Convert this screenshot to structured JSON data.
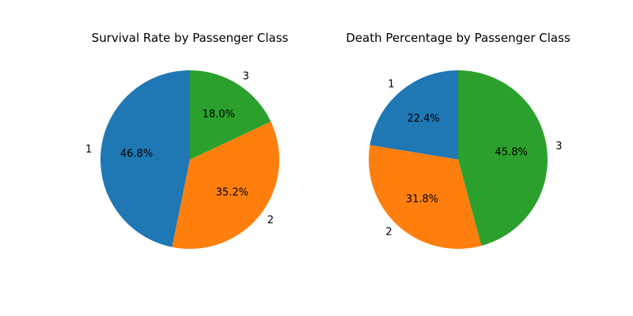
{
  "chart_data": [
    {
      "type": "pie",
      "title": "Survival Rate by Passenger Class",
      "categories": [
        "1",
        "2",
        "3"
      ],
      "values": [
        46.8,
        35.2,
        18.0
      ],
      "value_labels": [
        "46.8%",
        "35.2%",
        "18.0%"
      ],
      "colors": [
        "#1f77b4",
        "#ff7f0e",
        "#2ca02c"
      ],
      "start_angle_deg": 90,
      "direction": "counterclockwise"
    },
    {
      "type": "pie",
      "title": "Death Percentage by Passenger Class",
      "categories": [
        "1",
        "2",
        "3"
      ],
      "values": [
        22.4,
        31.8,
        45.8
      ],
      "value_labels": [
        "22.4%",
        "31.8%",
        "45.8%"
      ],
      "colors": [
        "#1f77b4",
        "#ff7f0e",
        "#2ca02c"
      ],
      "start_angle_deg": 90,
      "direction": "counterclockwise"
    }
  ]
}
